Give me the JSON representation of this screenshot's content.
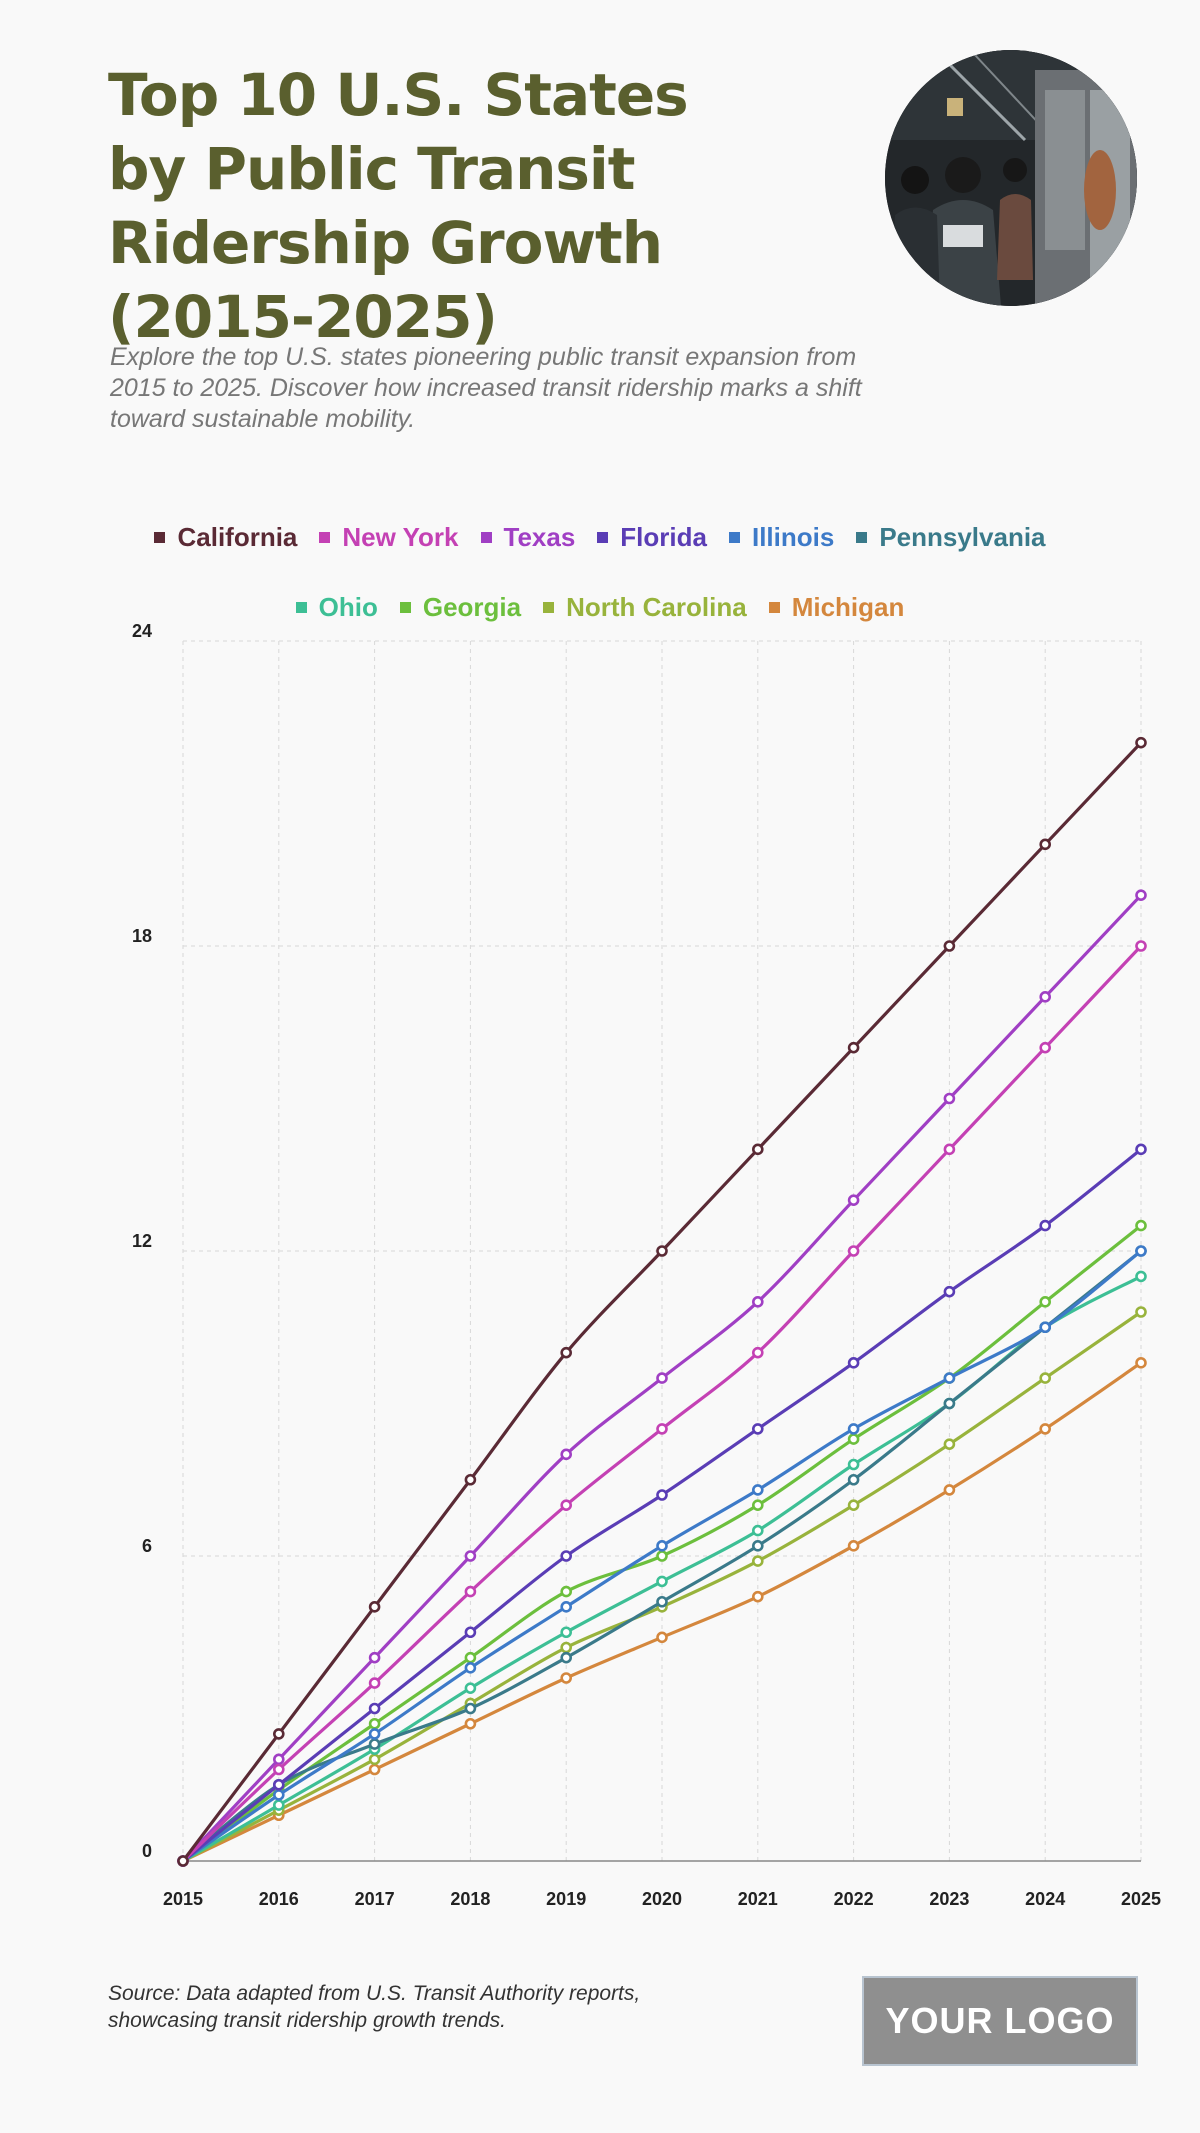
{
  "header": {
    "title": "Top 10 U.S. States by Public Transit Ridership Growth (2015-2025)",
    "subtitle": "Explore the top U.S. states pioneering public transit expansion from 2015 to 2025. Discover how increased transit ridership marks a shift toward sustainable mobility."
  },
  "footer": {
    "source": "Source: Data adapted from U.S. Transit Authority reports, showcasing transit ridership growth trends.",
    "logo_text": "YOUR LOGO"
  },
  "chart_data": {
    "type": "line",
    "title": "",
    "xlabel": "",
    "ylabel": "",
    "x": [
      2015,
      2016,
      2017,
      2018,
      2019,
      2020,
      2021,
      2022,
      2023,
      2024,
      2025
    ],
    "ylim": [
      0,
      24
    ],
    "yticks": [
      0,
      6,
      12,
      18,
      24
    ],
    "grid": true,
    "legend": "top",
    "series": [
      {
        "name": "California",
        "color": "#5a2a35",
        "values": [
          0,
          2.5,
          5,
          7.5,
          10,
          12,
          14,
          16,
          18,
          20,
          22
        ]
      },
      {
        "name": "New York",
        "color": "#c441b4",
        "values": [
          0,
          1.8,
          3.5,
          5.3,
          7,
          8.5,
          10,
          12,
          14,
          16,
          18
        ]
      },
      {
        "name": "Texas",
        "color": "#a03fc4",
        "values": [
          0,
          2,
          4,
          6,
          8,
          9.5,
          11,
          13,
          15,
          17,
          19
        ]
      },
      {
        "name": "Florida",
        "color": "#5a3db5",
        "values": [
          0,
          1.5,
          3,
          4.5,
          6,
          7.2,
          8.5,
          9.8,
          11.2,
          12.5,
          14
        ]
      },
      {
        "name": "Illinois",
        "color": "#3d7ac8",
        "values": [
          0,
          1.3,
          2.5,
          3.8,
          5,
          6.2,
          7.3,
          8.5,
          9.5,
          10.5,
          12
        ]
      },
      {
        "name": "Pennsylvania",
        "color": "#3a7a8a",
        "values": [
          0,
          1.5,
          2.3,
          3,
          4,
          5.1,
          6.2,
          7.5,
          9,
          10.5,
          12
        ]
      },
      {
        "name": "Ohio",
        "color": "#3dbf95",
        "values": [
          0,
          1.1,
          2.2,
          3.4,
          4.5,
          5.5,
          6.5,
          7.8,
          9,
          10.5,
          11.5
        ]
      },
      {
        "name": "Georgia",
        "color": "#6cbf3d",
        "values": [
          0,
          1.4,
          2.7,
          4,
          5.3,
          6,
          7,
          8.3,
          9.5,
          11,
          12.5
        ]
      },
      {
        "name": "North Carolina",
        "color": "#98b33c",
        "values": [
          0,
          1,
          2,
          3.1,
          4.2,
          5,
          5.9,
          7,
          8.2,
          9.5,
          10.8
        ]
      },
      {
        "name": "Michigan",
        "color": "#d4873d",
        "values": [
          0,
          0.9,
          1.8,
          2.7,
          3.6,
          4.4,
          5.2,
          6.2,
          7.3,
          8.5,
          9.8
        ]
      }
    ]
  }
}
